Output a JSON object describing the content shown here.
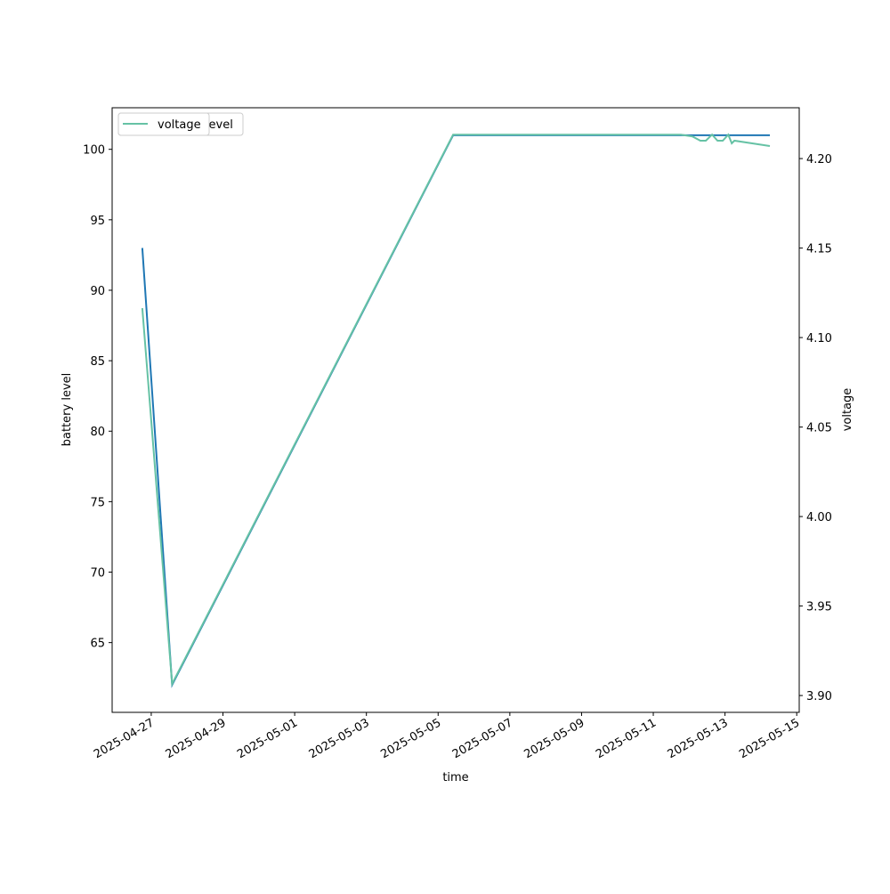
{
  "chart_data": {
    "type": "line",
    "x_label": "time",
    "y_label": "battery level",
    "y2_label": "voltage",
    "xlim": [
      "2025-04-25 21:50",
      "2025-05-15 01:40"
    ],
    "xticks": [
      "2025-04-27",
      "2025-04-29",
      "2025-05-01",
      "2025-05-03",
      "2025-05-05",
      "2025-05-07",
      "2025-05-09",
      "2025-05-11",
      "2025-05-13",
      "2025-05-15"
    ],
    "ylim": [
      60.05,
      102.95
    ],
    "yticks": [
      65,
      70,
      75,
      80,
      85,
      90,
      95,
      100
    ],
    "y2lim": [
      3.8906,
      4.2284
    ],
    "y2ticks": [
      {
        "value": 3.9,
        "label": "3.90"
      },
      3.95,
      {
        "value": 4.0,
        "label": "4.00"
      },
      4.05,
      {
        "value": 4.1,
        "label": "4.10"
      },
      4.15,
      {
        "value": 4.2,
        "label": "4.20"
      }
    ],
    "legend": "upper left",
    "series": [
      {
        "name": "battery_level",
        "color": "#1f77b4",
        "x": [
          "2025-04-26 18:00",
          "2025-04-27 14:00",
          "2025-05-05 10:00",
          "2025-05-14 06:00"
        ],
        "values": [
          93,
          62,
          101,
          101
        ]
      },
      {
        "name": "voltage",
        "color": "#66c2a5",
        "axis": "y2",
        "x": [
          "2025-04-26 18:00",
          "2025-04-27 14:00",
          "2025-05-05 10:00",
          "2025-05-11 18:30",
          "2025-05-12 02:10",
          "2025-05-12 07:30",
          "2025-05-12 11:10",
          "2025-05-12 15:20",
          "2025-05-12 19:00",
          "2025-05-12 22:30",
          "2025-05-13 02:10",
          "2025-05-13 04:30",
          "2025-05-13 06:20",
          "2025-05-14 06:00"
        ],
        "values": [
          4.1164,
          3.9065,
          4.2134,
          4.2134,
          4.2124,
          4.21,
          4.21,
          4.2134,
          4.21,
          4.21,
          4.2134,
          4.2085,
          4.21,
          4.207
        ]
      }
    ]
  }
}
